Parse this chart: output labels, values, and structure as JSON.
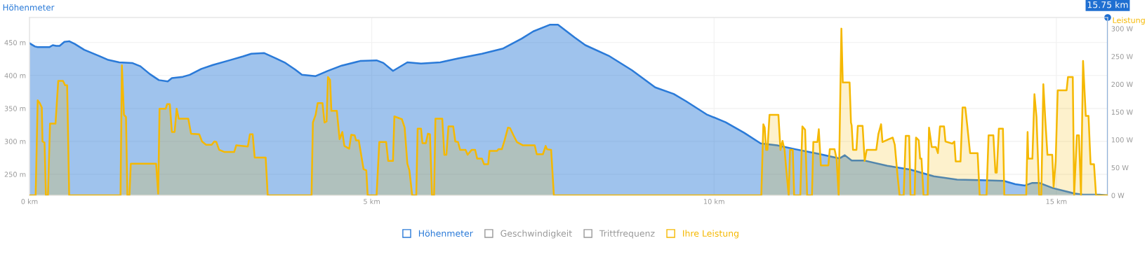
{
  "chart_data": {
    "type": "area",
    "ylabel": "Höhenmeter",
    "y2label": "Leistung",
    "xlim": [
      0,
      15.75
    ],
    "xticks": [
      {
        "value": 0,
        "label": "0 km"
      },
      {
        "value": 5,
        "label": "5 km"
      },
      {
        "value": 10,
        "label": "10 km"
      },
      {
        "value": 15,
        "label": "15 km"
      }
    ],
    "ylim": [
      218,
      488
    ],
    "yticks": [
      {
        "value": 250,
        "label": "250 m"
      },
      {
        "value": 300,
        "label": "300 m"
      },
      {
        "value": 350,
        "label": "350 m"
      },
      {
        "value": 400,
        "label": "400 m"
      },
      {
        "value": 450,
        "label": "450 m"
      }
    ],
    "y2lim": [
      0,
      320
    ],
    "y2ticks": [
      {
        "value": 0,
        "label": "0 W"
      },
      {
        "value": 50,
        "label": "50 W"
      },
      {
        "value": 100,
        "label": "100 W"
      },
      {
        "value": 150,
        "label": "150 W"
      },
      {
        "value": 200,
        "label": "200 W"
      },
      {
        "value": 250,
        "label": "250 W"
      },
      {
        "value": 300,
        "label": "300 W"
      }
    ],
    "grid": true,
    "legend": "bottom",
    "annotations": [
      "Geschwindigkeit",
      "Trittfrequenz"
    ],
    "ref_lines": [
      {
        "axis": "x",
        "value": 15.75,
        "label": "15.75 km",
        "color": "#1f6fd1"
      }
    ],
    "series": [
      {
        "name": "Höhenmeter",
        "color": "#2a7ad8",
        "axis": "y",
        "x": [
          0,
          0.08,
          0.12,
          0.29,
          0.34,
          0.39,
          0.44,
          0.51,
          0.58,
          0.66,
          0.8,
          1.01,
          1.14,
          1.31,
          1.5,
          1.62,
          1.76,
          1.89,
          2.02,
          2.08,
          2.24,
          2.34,
          2.51,
          2.68,
          2.92,
          3.12,
          3.24,
          3.43,
          3.6,
          3.74,
          3.88,
          3.98,
          4.18,
          4.36,
          4.56,
          4.83,
          5.07,
          5.17,
          5.31,
          5.52,
          5.72,
          6.0,
          6.27,
          6.61,
          6.92,
          7.19,
          7.36,
          7.6,
          7.72,
          7.96,
          8.12,
          8.46,
          8.8,
          9.14,
          9.41,
          9.59,
          9.89,
          10.17,
          10.44,
          10.68,
          10.92,
          11.19,
          11.53,
          11.83,
          11.91,
          12.01,
          12.19,
          12.53,
          12.87,
          13.21,
          13.55,
          13.89,
          14.23,
          14.4,
          14.54,
          14.65,
          14.75,
          14.95,
          15.26,
          15.39,
          15.63,
          15.75
        ],
        "values": [
          449,
          444,
          443,
          443,
          446,
          445,
          445,
          451,
          452,
          448,
          439,
          430,
          424,
          420,
          419,
          414,
          402,
          393,
          391,
          396,
          398,
          401,
          410,
          416,
          423,
          429,
          433,
          434,
          426,
          419,
          409,
          401,
          399,
          407,
          415,
          422,
          423,
          419,
          407,
          420,
          418,
          420,
          426,
          433,
          441,
          456,
          467,
          477,
          477,
          458,
          446,
          430,
          408,
          382,
          372,
          361,
          341,
          329,
          313,
          297,
          294,
          288,
          281,
          274,
          279,
          271,
          271,
          263,
          257,
          247,
          242,
          241,
          240,
          235,
          233,
          237,
          237,
          229,
          221,
          219,
          219,
          218
        ]
      },
      {
        "name": "Ihre Leistung",
        "color": "#f5b800",
        "axis": "y2",
        "x": [
          0,
          0.09,
          0.12,
          0.15,
          0.18,
          0.19,
          0.22,
          0.24,
          0.27,
          0.3,
          0.38,
          0.42,
          0.49,
          0.52,
          0.55,
          0.58,
          1.33,
          1.35,
          1.38,
          1.41,
          1.43,
          1.46,
          1.48,
          1.85,
          1.88,
          1.9,
          1.99,
          2.01,
          2.05,
          2.08,
          2.12,
          2.15,
          2.18,
          2.32,
          2.36,
          2.48,
          2.52,
          2.58,
          2.66,
          2.7,
          2.73,
          2.77,
          2.85,
          2.99,
          3.02,
          3.19,
          3.22,
          3.26,
          3.29,
          3.45,
          3.48,
          4.12,
          4.14,
          4.18,
          4.21,
          4.28,
          4.31,
          4.34,
          4.36,
          4.39,
          4.41,
          4.49,
          4.53,
          4.57,
          4.6,
          4.67,
          4.7,
          4.75,
          4.77,
          4.81,
          4.83,
          4.88,
          4.92,
          4.94,
          5.07,
          5.11,
          5.21,
          5.24,
          5.31,
          5.33,
          5.44,
          5.48,
          5.52,
          5.55,
          5.59,
          5.65,
          5.67,
          5.72,
          5.74,
          5.79,
          5.82,
          5.85,
          5.88,
          5.91,
          5.93,
          6.03,
          6.06,
          6.09,
          6.12,
          6.19,
          6.22,
          6.26,
          6.29,
          6.37,
          6.4,
          6.46,
          6.51,
          6.54,
          6.61,
          6.64,
          6.7,
          6.72,
          6.83,
          6.85,
          6.9,
          6.94,
          6.99,
          7.02,
          7.07,
          7.12,
          7.21,
          7.38,
          7.41,
          7.5,
          7.54,
          7.56,
          7.62,
          7.66,
          10.69,
          10.72,
          10.74,
          10.76,
          10.78,
          10.81,
          10.94,
          10.97,
          11.0,
          11.03,
          11.05,
          11.09,
          11.11,
          11.15,
          11.17,
          11.26,
          11.29,
          11.33,
          11.36,
          11.43,
          11.45,
          11.51,
          11.53,
          11.56,
          11.67,
          11.69,
          11.76,
          11.79,
          11.82,
          11.86,
          11.88,
          11.98,
          12.0,
          12.01,
          12.03,
          12.08,
          12.1,
          12.17,
          12.2,
          12.23,
          12.37,
          12.4,
          12.44,
          12.46,
          12.55,
          12.61,
          12.64,
          12.68,
          12.71,
          12.77,
          12.8,
          12.85,
          12.87,
          12.93,
          12.95,
          12.99,
          13.01,
          13.03,
          13.06,
          13.12,
          13.14,
          13.18,
          13.24,
          13.27,
          13.3,
          13.36,
          13.38,
          13.48,
          13.51,
          13.53,
          13.6,
          13.63,
          13.67,
          13.7,
          13.74,
          13.85,
          13.88,
          13.98,
          14.01,
          14.08,
          14.11,
          14.13,
          14.16,
          14.22,
          14.24,
          14.56,
          14.58,
          14.59,
          14.65,
          14.68,
          14.71,
          14.75,
          14.78,
          14.81,
          14.84,
          14.87,
          14.94,
          14.96,
          14.99,
          15.02,
          15.15,
          15.17,
          15.24,
          15.26,
          15.3,
          15.33,
          15.36,
          15.39,
          15.43,
          15.47,
          15.5,
          15.55,
          15.58,
          15.75
        ],
        "values": [
          0,
          0,
          171,
          166,
          158,
          97,
          95,
          0,
          0,
          129,
          129,
          206,
          206,
          198,
          198,
          0,
          0,
          234,
          145,
          141,
          0,
          0,
          57,
          57,
          3,
          156,
          156,
          164,
          164,
          114,
          114,
          156,
          138,
          138,
          111,
          110,
          97,
          91,
          91,
          97,
          96,
          82,
          78,
          78,
          90,
          88,
          110,
          110,
          68,
          68,
          0,
          0,
          131,
          145,
          166,
          166,
          131,
          133,
          213,
          208,
          152,
          152,
          101,
          114,
          89,
          84,
          109,
          108,
          99,
          99,
          84,
          47,
          45,
          0,
          0,
          96,
          96,
          62,
          62,
          142,
          137,
          122,
          57,
          45,
          0,
          0,
          120,
          120,
          94,
          94,
          111,
          110,
          0,
          0,
          138,
          138,
          73,
          73,
          124,
          124,
          97,
          96,
          82,
          82,
          73,
          82,
          82,
          66,
          66,
          56,
          56,
          80,
          80,
          83,
          83,
          99,
          122,
          121,
          108,
          96,
          90,
          90,
          74,
          74,
          89,
          83,
          82,
          0,
          0,
          128,
          122,
          82,
          82,
          145,
          145,
          82,
          98,
          82,
          53,
          0,
          82,
          82,
          0,
          0,
          124,
          118,
          0,
          0,
          96,
          96,
          119,
          54,
          54,
          83,
          83,
          66,
          0,
          300,
          203,
          203,
          131,
          126,
          82,
          82,
          125,
          125,
          62,
          82,
          82,
          110,
          128,
          96,
          101,
          104,
          91,
          36,
          0,
          0,
          107,
          107,
          0,
          0,
          104,
          99,
          66,
          66,
          0,
          0,
          122,
          87,
          87,
          76,
          124,
          124,
          97,
          93,
          97,
          61,
          61,
          158,
          158,
          124,
          76,
          76,
          0,
          0,
          108,
          108,
          41,
          41,
          120,
          120,
          0,
          0,
          114,
          66,
          66,
          182,
          141,
          0,
          0,
          200,
          133,
          73,
          73,
          15,
          61,
          189,
          189,
          213,
          213,
          0,
          108,
          108,
          0,
          242,
          143,
          143,
          56,
          56,
          0,
          0
        ]
      }
    ]
  }
}
